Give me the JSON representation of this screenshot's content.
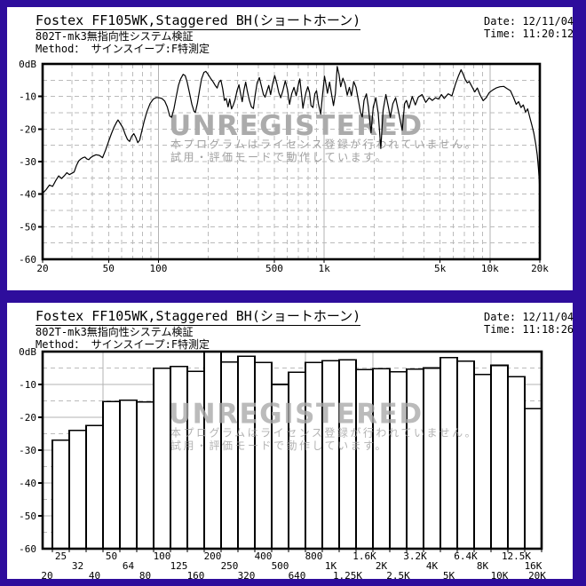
{
  "page": {
    "background_color": "#2e0d9c",
    "panel_color": "#ffffff"
  },
  "watermark": {
    "big_text": "UNREGISTERED",
    "line1": "本プログラムはライセンス登録が行われていません。",
    "line2": "試用・評価モードで動作しています。",
    "color": "#ababab"
  },
  "panels": [
    {
      "title": "Fostex FF105WK,Staggered BH(ショートホーン)",
      "subtitle": "802T-mk3無指向性システム検証",
      "method_line": "Method： サインスイープ:F特測定",
      "date_label": "Date:",
      "date_value": "12/11/04",
      "time_label": "Time:",
      "time_value": "11:20:12"
    },
    {
      "title": "Fostex FF105WK,Staggered BH(ショートホーン)",
      "subtitle": "802T-mk3無指向性システム検証",
      "method_line": "Method： サインスイープ:F特測定",
      "date_label": "Date:",
      "date_value": "12/11/04",
      "time_label": "Time:",
      "time_value": "11:18:26"
    }
  ],
  "chart_data": [
    {
      "type": "line",
      "title": "Frequency response (sine sweep)",
      "x_scale": "log",
      "xlim": [
        20,
        20000
      ],
      "ylim": [
        -60,
        0
      ],
      "y_ticks": [
        {
          "v": 0,
          "label": "0dB"
        },
        {
          "v": -10,
          "label": "-10"
        },
        {
          "v": -20,
          "label": "-20"
        },
        {
          "v": -30,
          "label": "-30"
        },
        {
          "v": -40,
          "label": "-40"
        },
        {
          "v": -50,
          "label": "-50"
        },
        {
          "v": -60,
          "label": "-60"
        }
      ],
      "x_ticks": [
        {
          "f": 20,
          "label": "20"
        },
        {
          "f": 50,
          "label": "50"
        },
        {
          "f": 100,
          "label": "100"
        },
        {
          "f": 500,
          "label": "500"
        },
        {
          "f": 1000,
          "label": "1k"
        },
        {
          "f": 5000,
          "label": "5k"
        },
        {
          "f": 10000,
          "label": "10k"
        },
        {
          "f": 20000,
          "label": "20k"
        }
      ],
      "grid": {
        "v_solid": [
          100,
          1000,
          10000
        ],
        "v_dashed": [
          30,
          40,
          50,
          60,
          70,
          80,
          90,
          200,
          300,
          400,
          500,
          600,
          700,
          800,
          900,
          2000,
          3000,
          4000,
          5000,
          6000,
          7000,
          8000,
          9000
        ],
        "h_dashed": [
          -5,
          -10,
          -15,
          -20,
          -25,
          -30,
          -35,
          -40,
          -45,
          -50,
          -55
        ]
      },
      "line_color": "#000000",
      "points": [
        [
          20,
          -39.8
        ],
        [
          21,
          -38.6
        ],
        [
          22,
          -37.2
        ],
        [
          23,
          -37.6
        ],
        [
          24,
          -35.8
        ],
        [
          25,
          -34.4
        ],
        [
          26,
          -35.2
        ],
        [
          27,
          -34.4
        ],
        [
          28,
          -33.4
        ],
        [
          29,
          -34
        ],
        [
          30,
          -33.6
        ],
        [
          31,
          -33.2
        ],
        [
          32,
          -31.2
        ],
        [
          33,
          -29.8
        ],
        [
          34,
          -29.2
        ],
        [
          35,
          -28.8
        ],
        [
          36,
          -28.6
        ],
        [
          37,
          -29.2
        ],
        [
          38,
          -29.4
        ],
        [
          39,
          -28.8
        ],
        [
          40,
          -28.4
        ],
        [
          42,
          -27.9
        ],
        [
          44,
          -28.1
        ],
        [
          46,
          -28.8
        ],
        [
          48,
          -26.4
        ],
        [
          50,
          -23.8
        ],
        [
          52,
          -21.4
        ],
        [
          54,
          -19.4
        ],
        [
          56,
          -17.8
        ],
        [
          57,
          -17.2
        ],
        [
          59,
          -18.4
        ],
        [
          61,
          -19.6
        ],
        [
          63,
          -21.6
        ],
        [
          65,
          -23.2
        ],
        [
          67,
          -23.8
        ],
        [
          69,
          -22.2
        ],
        [
          71,
          -21.4
        ],
        [
          73,
          -22.6
        ],
        [
          75,
          -24.2
        ],
        [
          77,
          -23.4
        ],
        [
          79,
          -21
        ],
        [
          82,
          -17.6
        ],
        [
          85,
          -14.8
        ],
        [
          89,
          -12.2
        ],
        [
          93,
          -10.8
        ],
        [
          97,
          -10.3
        ],
        [
          101,
          -10.4
        ],
        [
          105,
          -10.6
        ],
        [
          109,
          -11.4
        ],
        [
          113,
          -13.2
        ],
        [
          117,
          -16
        ],
        [
          120,
          -16.4
        ],
        [
          124,
          -13.8
        ],
        [
          128,
          -10
        ],
        [
          132,
          -6.6
        ],
        [
          136,
          -4.6
        ],
        [
          141,
          -3.2
        ],
        [
          145,
          -3.6
        ],
        [
          149,
          -5.6
        ],
        [
          154,
          -9
        ],
        [
          159,
          -12.4
        ],
        [
          164,
          -14.6
        ],
        [
          167,
          -14.9
        ],
        [
          172,
          -12
        ],
        [
          177,
          -8
        ],
        [
          182,
          -4.6
        ],
        [
          188,
          -2.6
        ],
        [
          193,
          -2.3
        ],
        [
          199,
          -3.2
        ],
        [
          206,
          -4.4
        ],
        [
          213,
          -5.4
        ],
        [
          220,
          -6.6
        ],
        [
          226,
          -7.4
        ],
        [
          232,
          -5.6
        ],
        [
          238,
          -5
        ],
        [
          244,
          -7.6
        ],
        [
          250,
          -11.2
        ],
        [
          256,
          -10.6
        ],
        [
          263,
          -13.2
        ],
        [
          269,
          -10.8
        ],
        [
          276,
          -13.8
        ],
        [
          283,
          -12.6
        ],
        [
          290,
          -11
        ],
        [
          298,
          -8.2
        ],
        [
          306,
          -6.4
        ],
        [
          313,
          -9.2
        ],
        [
          320,
          -11.6
        ],
        [
          328,
          -8
        ],
        [
          336,
          -5.6
        ],
        [
          344,
          -8.4
        ],
        [
          353,
          -11
        ],
        [
          364,
          -13.2
        ],
        [
          374,
          -13.7
        ],
        [
          384,
          -9.4
        ],
        [
          394,
          -5.8
        ],
        [
          406,
          -4.2
        ],
        [
          418,
          -6.8
        ],
        [
          430,
          -9.4
        ],
        [
          440,
          -10.2
        ],
        [
          452,
          -8.2
        ],
        [
          463,
          -6.6
        ],
        [
          475,
          -9.4
        ],
        [
          488,
          -6.2
        ],
        [
          503,
          -3.6
        ],
        [
          518,
          -6
        ],
        [
          532,
          -8.8
        ],
        [
          547,
          -10.4
        ],
        [
          563,
          -8.2
        ],
        [
          582,
          -5.2
        ],
        [
          600,
          -7.8
        ],
        [
          618,
          -12.4
        ],
        [
          636,
          -9.2
        ],
        [
          657,
          -7.2
        ],
        [
          678,
          -9.8
        ],
        [
          698,
          -6.4
        ],
        [
          713,
          -4.6
        ],
        [
          729,
          -9.2
        ],
        [
          744,
          -13.6
        ],
        [
          760,
          -11
        ],
        [
          778,
          -8.6
        ],
        [
          797,
          -7
        ],
        [
          814,
          -8.6
        ],
        [
          833,
          -12.8
        ],
        [
          856,
          -13.4
        ],
        [
          878,
          -9.2
        ],
        [
          899,
          -8.2
        ],
        [
          923,
          -12.2
        ],
        [
          953,
          -15.4
        ],
        [
          978,
          -9.4
        ],
        [
          1004,
          -3.8
        ],
        [
          1024,
          -6.2
        ],
        [
          1046,
          -9
        ],
        [
          1078,
          -5.6
        ],
        [
          1108,
          -9.4
        ],
        [
          1138,
          -12.8
        ],
        [
          1168,
          -9.2
        ],
        [
          1198,
          -0.8
        ],
        [
          1228,
          -3.2
        ],
        [
          1258,
          -7
        ],
        [
          1297,
          -4.4
        ],
        [
          1337,
          -6.2
        ],
        [
          1378,
          -9.6
        ],
        [
          1419,
          -7.2
        ],
        [
          1459,
          -9.8
        ],
        [
          1508,
          -5.4
        ],
        [
          1557,
          -7.2
        ],
        [
          1606,
          -11
        ],
        [
          1655,
          -14.8
        ],
        [
          1697,
          -16.3
        ],
        [
          1738,
          -11.2
        ],
        [
          1797,
          -9.2
        ],
        [
          1848,
          -13.2
        ],
        [
          1917,
          -21.2
        ],
        [
          1977,
          -13.2
        ],
        [
          2048,
          -10.4
        ],
        [
          2118,
          -15.2
        ],
        [
          2197,
          -26
        ],
        [
          2267,
          -14.2
        ],
        [
          2357,
          -9.4
        ],
        [
          2437,
          -13.2
        ],
        [
          2507,
          -16.4
        ],
        [
          2597,
          -12.2
        ],
        [
          2697,
          -10.4
        ],
        [
          2817,
          -15
        ],
        [
          2957,
          -20.4
        ],
        [
          3057,
          -12.2
        ],
        [
          3137,
          -11.2
        ],
        [
          3247,
          -13.6
        ],
        [
          3397,
          -10
        ],
        [
          3547,
          -12.6
        ],
        [
          3697,
          -10.2
        ],
        [
          3897,
          -9.4
        ],
        [
          4097,
          -11.8
        ],
        [
          4297,
          -10.4
        ],
        [
          4497,
          -11.2
        ],
        [
          4697,
          -10.4
        ],
        [
          4897,
          -10.8
        ],
        [
          5097,
          -9.4
        ],
        [
          5297,
          -10.6
        ],
        [
          5597,
          -9.2
        ],
        [
          5897,
          -9.8
        ],
        [
          6197,
          -6.2
        ],
        [
          6447,
          -3.8
        ],
        [
          6697,
          -1.8
        ],
        [
          6897,
          -3.2
        ],
        [
          7097,
          -4.8
        ],
        [
          7297,
          -5.8
        ],
        [
          7497,
          -5.4
        ],
        [
          7797,
          -7
        ],
        [
          8097,
          -8.6
        ],
        [
          8397,
          -7.4
        ],
        [
          8697,
          -9.4
        ],
        [
          9097,
          -11.3
        ],
        [
          9497,
          -10.4
        ],
        [
          9897,
          -8.8
        ],
        [
          10400,
          -8
        ],
        [
          10900,
          -7.4
        ],
        [
          11500,
          -7
        ],
        [
          12100,
          -6.9
        ],
        [
          12700,
          -7.6
        ],
        [
          13300,
          -8.2
        ],
        [
          13900,
          -10.4
        ],
        [
          14400,
          -12.4
        ],
        [
          14900,
          -11.6
        ],
        [
          15400,
          -13.4
        ],
        [
          15900,
          -12.6
        ],
        [
          16400,
          -14.8
        ],
        [
          16900,
          -13.8
        ],
        [
          17400,
          -16.4
        ],
        [
          17900,
          -18.8
        ],
        [
          18400,
          -21.2
        ],
        [
          18900,
          -24.6
        ],
        [
          19300,
          -28
        ],
        [
          19600,
          -32
        ],
        [
          19850,
          -36
        ],
        [
          20000,
          -39.5
        ]
      ]
    },
    {
      "type": "bar",
      "title": "Third-octave band levels (sine sweep)",
      "ylim": [
        -60,
        0
      ],
      "y_ticks": [
        {
          "v": 0,
          "label": "0dB"
        },
        {
          "v": -10,
          "label": "-10"
        },
        {
          "v": -20,
          "label": "-20"
        },
        {
          "v": -30,
          "label": "-30"
        },
        {
          "v": -40,
          "label": "-40"
        },
        {
          "v": -50,
          "label": "-50"
        },
        {
          "v": -60,
          "label": "-60"
        }
      ],
      "left_edge_label": "20",
      "right_edge_label": "20K",
      "categories": [
        "25",
        "32",
        "40",
        "50",
        "64",
        "80",
        "100",
        "125",
        "160",
        "200",
        "250",
        "320",
        "400",
        "500",
        "640",
        "800",
        "1K",
        "1.25K",
        "1.6K",
        "2K",
        "2.5K",
        "3.2K",
        "4K",
        "5K",
        "6.4K",
        "8K",
        "10K",
        "12.5K",
        "16K"
      ],
      "values": [
        -27,
        -24,
        -22.5,
        -15.2,
        -14.8,
        -15.3,
        -5.1,
        -4.5,
        -6,
        0,
        -3.2,
        -1.4,
        -3.3,
        -10,
        -6.3,
        -3.3,
        -2.8,
        -2.5,
        -5.5,
        -5.2,
        -6.2,
        -5.3,
        -5,
        -1.8,
        -2.9,
        -7,
        -4.2,
        -7.6,
        -17.4
      ],
      "bar_fill": "#ffffff",
      "bar_stroke": "#000000",
      "grid": {
        "h_solid": [
          -10,
          -20,
          -30,
          -40,
          -50
        ],
        "h_dashed": [
          -5,
          -15,
          -25,
          -35,
          -45,
          -55
        ],
        "v_solid_edge_indices": [
          3,
          15,
          19,
          26
        ]
      }
    }
  ]
}
